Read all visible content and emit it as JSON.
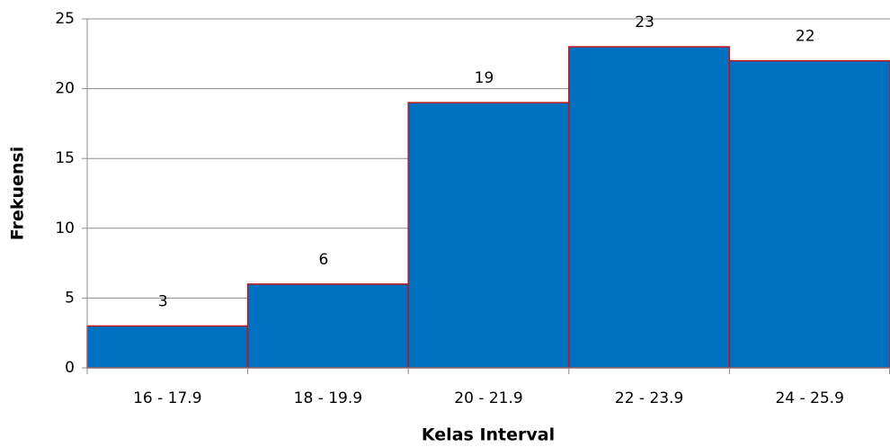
{
  "chart_data": {
    "type": "bar",
    "categories": [
      "16 - 17.9",
      "18 - 19.9",
      "20 - 21.9",
      "22 - 23.9",
      "24 - 25.9"
    ],
    "values": [
      3,
      6,
      19,
      23,
      22
    ],
    "color": "#0070c0",
    "edge_color": "#c0141c",
    "xlabel": "Kelas Interval",
    "ylabel": "Frekuensi",
    "ylim": [
      0,
      25
    ],
    "yticks": [
      0,
      5,
      10,
      15,
      20,
      25
    ],
    "grid": true
  }
}
